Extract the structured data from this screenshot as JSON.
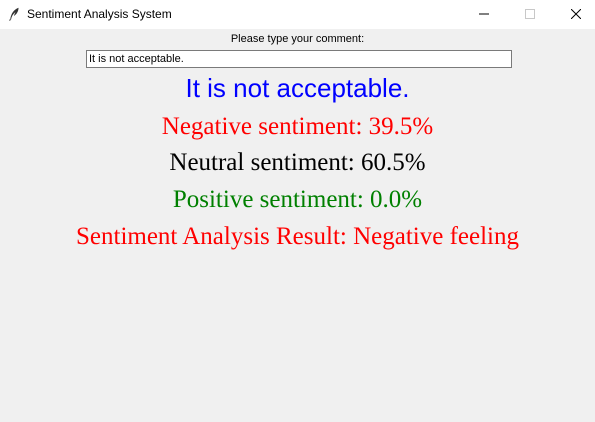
{
  "window": {
    "title": "Sentiment Analysis System",
    "icon": "feather-icon",
    "controls": [
      "minimize-icon",
      "maximize-icon",
      "close-icon"
    ]
  },
  "form": {
    "prompt": "Please type your comment:",
    "comment_value": "It is not acceptable."
  },
  "output": {
    "echo": "It is not acceptable.",
    "negative": "Negative sentiment: 39.5%",
    "neutral": "Neutral sentiment: 60.5%",
    "positive": "Positive sentiment: 0.0%",
    "result": "Sentiment Analysis Result: Negative feeling"
  },
  "colors": {
    "echo": "#0000ff",
    "negative": "#ff0000",
    "neutral": "#000000",
    "positive": "#008000",
    "result": "#ff0000",
    "background": "#f0f0f0"
  }
}
